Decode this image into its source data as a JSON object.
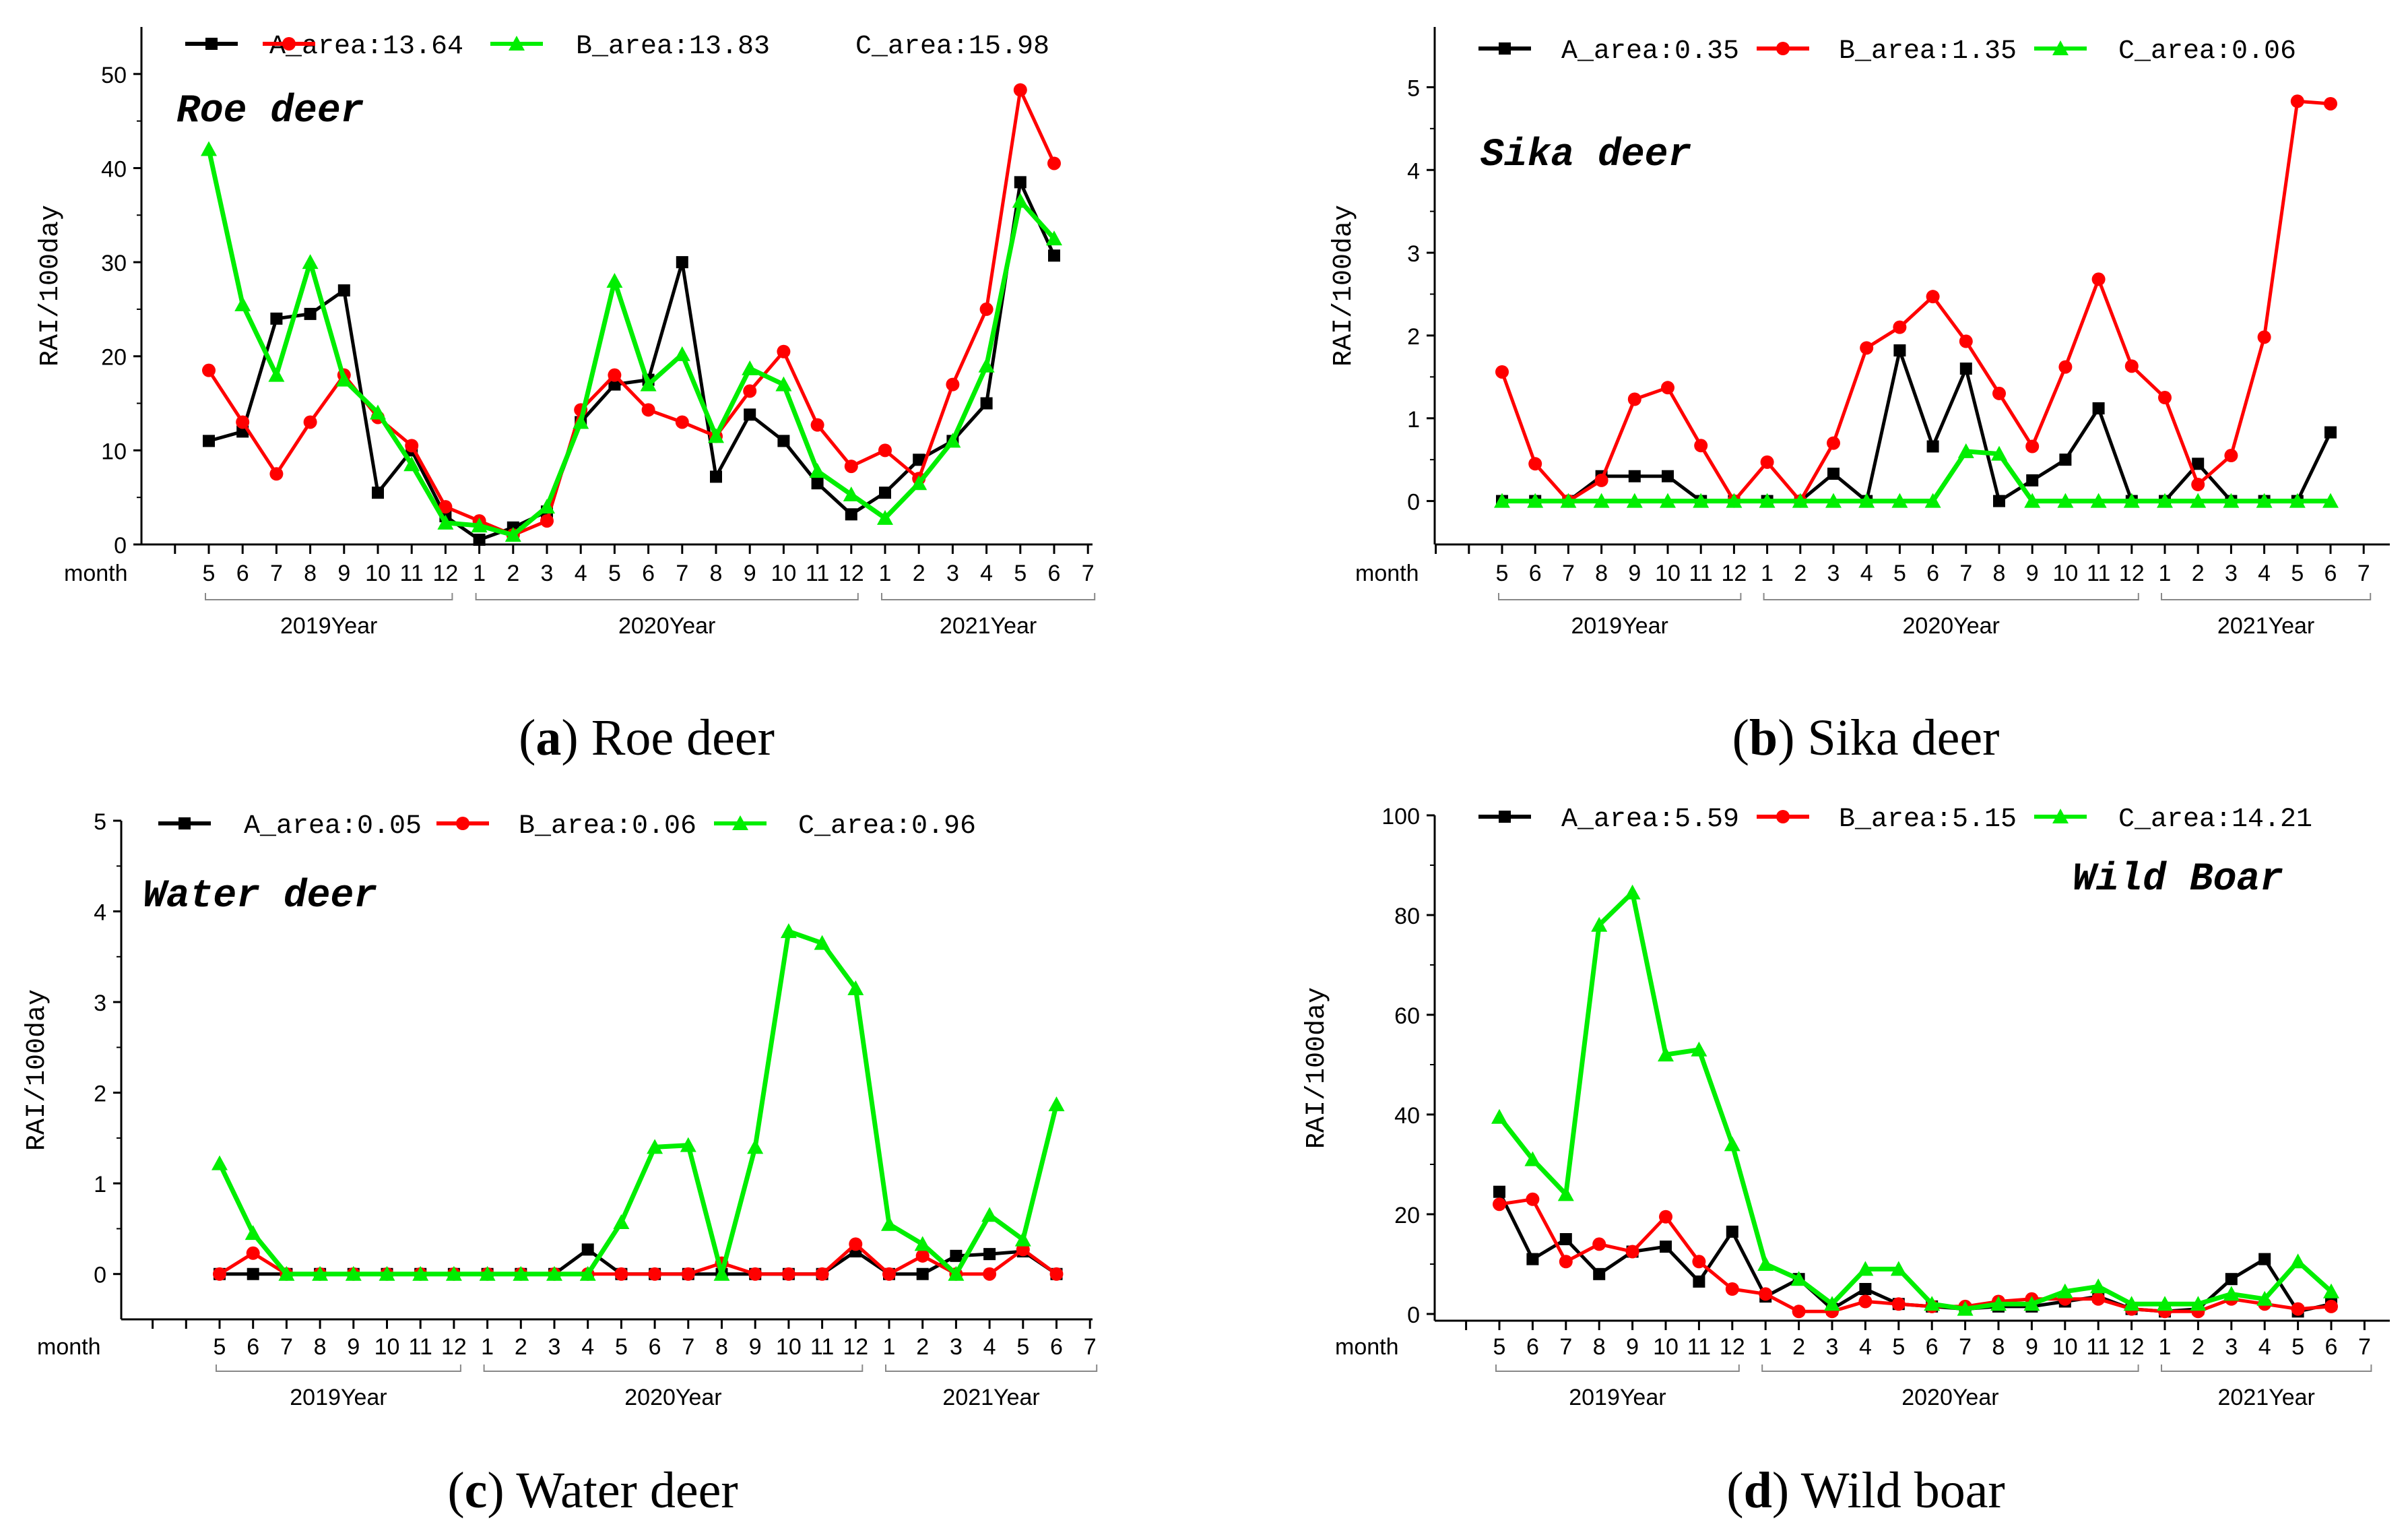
{
  "chart_data": [
    {
      "type": "line",
      "title": "Roe deer",
      "caption_letter": "a",
      "caption_text": "Roe deer",
      "ylabel": "RAI/100day",
      "xlabel": "month",
      "ylim": [
        0,
        55
      ],
      "yticks": [
        0,
        10,
        20,
        30,
        40,
        50
      ],
      "categories": [
        "5",
        "6",
        "7",
        "8",
        "9",
        "10",
        "11",
        "12",
        "1",
        "2",
        "3",
        "4",
        "5",
        "6",
        "7",
        "8",
        "9",
        "10",
        "11",
        "12",
        "1",
        "2",
        "3",
        "4",
        "5",
        "6",
        "7"
      ],
      "year_groups": [
        {
          "label": "2019Year",
          "start": 0,
          "end": 7
        },
        {
          "label": "2020Year",
          "start": 8,
          "end": 19
        },
        {
          "label": "2021Year",
          "start": 20,
          "end": 26
        }
      ],
      "series": [
        {
          "name": "A_area:13.64",
          "color": "#000000",
          "marker": "square",
          "values": [
            11,
            12,
            24,
            24.5,
            27,
            5.5,
            10,
            3,
            0.5,
            1.8,
            3.5,
            13,
            17,
            17.5,
            30,
            7.2,
            13.8,
            11,
            6.5,
            3.2,
            5.5,
            9,
            11,
            15,
            38.5,
            30.7,
            null
          ]
        },
        {
          "name": "B_area:13.83",
          "color": "#ff0000",
          "marker": "circle",
          "values": [
            18.5,
            13,
            7.5,
            13,
            18,
            13.5,
            10.5,
            4,
            2.5,
            1,
            2.5,
            14.3,
            18,
            14.3,
            13,
            11.5,
            16.3,
            20.5,
            12.7,
            8.3,
            10,
            7,
            17,
            25,
            48.3,
            40.5,
            null
          ]
        },
        {
          "name": "C_area:15.98",
          "color": "#00ee00",
          "marker": "triangle",
          "values": [
            42,
            25.5,
            18,
            30,
            17.5,
            14,
            8.5,
            2.3,
            2,
            1,
            4,
            13,
            28,
            17,
            20.2,
            11.5,
            18.7,
            17,
            7.8,
            5.3,
            2.8,
            6.5,
            11,
            19,
            36.5,
            32.5,
            null
          ]
        }
      ]
    },
    {
      "type": "line",
      "title": "Sika deer",
      "caption_letter": "b",
      "caption_text": "Sika deer",
      "ylabel": "RAI/100day",
      "xlabel": "month",
      "ylim": [
        -0.5,
        5.5
      ],
      "yticks": [
        0,
        1,
        2,
        3,
        4,
        5
      ],
      "categories": [
        "5",
        "6",
        "7",
        "8",
        "9",
        "10",
        "11",
        "12",
        "1",
        "2",
        "3",
        "4",
        "5",
        "6",
        "7",
        "8",
        "9",
        "10",
        "11",
        "12",
        "1",
        "2",
        "3",
        "4",
        "5",
        "6",
        "7"
      ],
      "year_groups": [
        {
          "label": "2019Year",
          "start": 0,
          "end": 7
        },
        {
          "label": "2020Year",
          "start": 8,
          "end": 19
        },
        {
          "label": "2021Year",
          "start": 20,
          "end": 26
        }
      ],
      "series": [
        {
          "name": "A_area:0.35",
          "color": "#000000",
          "marker": "square",
          "values": [
            0,
            0,
            0,
            0.3,
            0.3,
            0.3,
            0,
            0,
            0,
            0,
            0.33,
            0,
            1.82,
            0.66,
            1.6,
            0,
            0.25,
            0.5,
            1.12,
            0,
            0,
            0.45,
            0,
            0,
            0,
            0.83,
            null
          ]
        },
        {
          "name": "B_area:1.35",
          "color": "#ff0000",
          "marker": "circle",
          "values": [
            1.56,
            0.45,
            0,
            0.25,
            1.23,
            1.37,
            0.67,
            0,
            0.47,
            0,
            0.7,
            1.85,
            2.1,
            2.47,
            1.93,
            1.3,
            0.66,
            1.62,
            2.68,
            1.63,
            1.25,
            0.2,
            0.55,
            1.98,
            4.83,
            4.8,
            null
          ]
        },
        {
          "name": "C_area:0.06",
          "color": "#00ee00",
          "marker": "triangle",
          "values": [
            0,
            0,
            0,
            0,
            0,
            0,
            0,
            0,
            0,
            0,
            0,
            0,
            0,
            0,
            0.6,
            0.57,
            0,
            0,
            0,
            0,
            0,
            0,
            0,
            0,
            0,
            0,
            null
          ]
        }
      ]
    },
    {
      "type": "line",
      "title": "Water deer",
      "caption_letter": "c",
      "caption_text": "Water deer",
      "ylabel": "RAI/100day",
      "xlabel": "month",
      "ylim": [
        -0.5,
        5
      ],
      "yticks": [
        0,
        1,
        2,
        3,
        4,
        5
      ],
      "categories": [
        "5",
        "6",
        "7",
        "8",
        "9",
        "10",
        "11",
        "12",
        "1",
        "2",
        "3",
        "4",
        "5",
        "6",
        "7",
        "8",
        "9",
        "10",
        "11",
        "12",
        "1",
        "2",
        "3",
        "4",
        "5",
        "6",
        "7"
      ],
      "year_groups": [
        {
          "label": "2019Year",
          "start": 0,
          "end": 7
        },
        {
          "label": "2020Year",
          "start": 8,
          "end": 19
        },
        {
          "label": "2021Year",
          "start": 20,
          "end": 26
        }
      ],
      "series": [
        {
          "name": "A_area:0.05",
          "color": "#000000",
          "marker": "square",
          "values": [
            0,
            0,
            0,
            0,
            0,
            0,
            0,
            0,
            0,
            0,
            0,
            0.27,
            0,
            0,
            0,
            0,
            0,
            0,
            0,
            0.25,
            0,
            0,
            0.2,
            0.22,
            0.25,
            0,
            null
          ]
        },
        {
          "name": "B_area:0.06",
          "color": "#ff0000",
          "marker": "circle",
          "values": [
            0,
            0.23,
            0,
            0,
            0,
            0,
            0,
            0,
            0,
            0,
            0,
            0,
            0,
            0,
            0,
            0.12,
            0,
            0,
            0,
            0.33,
            0,
            0.2,
            0,
            0,
            0.27,
            0,
            null
          ]
        },
        {
          "name": "C_area:0.96",
          "color": "#00ee00",
          "marker": "triangle",
          "values": [
            1.22,
            0.45,
            0,
            0,
            0,
            0,
            0,
            0,
            0,
            0,
            0,
            0,
            0.57,
            1.4,
            1.42,
            0,
            1.4,
            3.78,
            3.65,
            3.15,
            0.55,
            0.33,
            0,
            0.65,
            0.38,
            1.87,
            null
          ]
        }
      ]
    },
    {
      "type": "line",
      "title": "Wild Boar",
      "caption_letter": "d",
      "caption_text": "Wild boar",
      "ylabel": "RAI/100day",
      "xlabel": "month",
      "ylim": [
        0,
        100
      ],
      "yticks": [
        0,
        20,
        40,
        60,
        80,
        100
      ],
      "categories": [
        "5",
        "6",
        "7",
        "8",
        "9",
        "10",
        "11",
        "12",
        "1",
        "2",
        "3",
        "4",
        "5",
        "6",
        "7",
        "8",
        "9",
        "10",
        "11",
        "12",
        "1",
        "2",
        "3",
        "4",
        "5",
        "6",
        "7"
      ],
      "year_groups": [
        {
          "label": "2019Year",
          "start": 0,
          "end": 7
        },
        {
          "label": "2020Year",
          "start": 8,
          "end": 19
        },
        {
          "label": "2021Year",
          "start": 20,
          "end": 26
        }
      ],
      "series": [
        {
          "name": "A_area:5.59",
          "color": "#000000",
          "marker": "square",
          "values": [
            24.5,
            11,
            15,
            8,
            12.5,
            13.5,
            6.5,
            16.5,
            3.5,
            7,
            1,
            5,
            2,
            1.5,
            1,
            1.5,
            1.5,
            2.5,
            3.5,
            1,
            0.5,
            1,
            7,
            11,
            0.5,
            2,
            null
          ]
        },
        {
          "name": "B_area:5.15",
          "color": "#ff0000",
          "marker": "circle",
          "values": [
            22,
            23,
            10.5,
            14,
            12.5,
            19.5,
            10.5,
            5,
            4,
            0.5,
            0.5,
            2.5,
            2,
            1.5,
            1.5,
            2.5,
            3,
            3,
            3,
            1,
            0.5,
            0.5,
            3,
            2,
            1,
            1.5,
            null
          ]
        },
        {
          "name": "C_area:14.21",
          "color": "#00ee00",
          "marker": "triangle",
          "values": [
            39.5,
            31,
            24,
            78,
            84.5,
            52,
            53,
            34,
            10,
            7,
            2,
            9,
            9,
            2,
            1,
            2,
            2,
            4.5,
            5.5,
            2,
            2,
            2,
            4,
            3,
            10.5,
            4.5,
            null
          ]
        }
      ]
    }
  ]
}
